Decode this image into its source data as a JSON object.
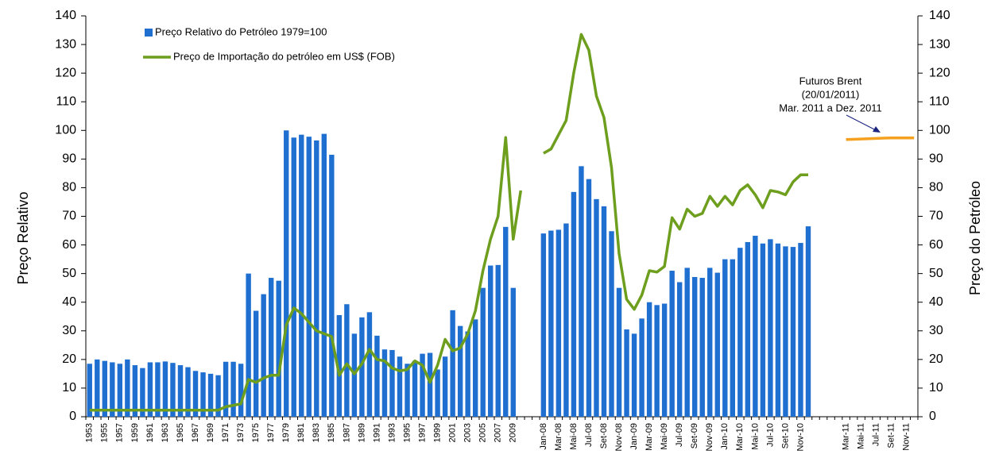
{
  "chart_data": {
    "type": "bar",
    "ylabel": "Preço Relativo",
    "y2label": "Preço do Petróleo",
    "annotation": [
      "Futuros Brent",
      "(20/01/2011)",
      "Mar. 2011  a Dez. 2011"
    ],
    "categories": [
      "1953",
      null,
      "1955",
      null,
      "1957",
      null,
      "1959",
      null,
      "1961",
      null,
      "1963",
      null,
      "1965",
      null,
      "1967",
      null,
      "1969",
      null,
      "1971",
      null,
      "1973",
      null,
      "1975",
      null,
      "1977",
      null,
      "1979",
      null,
      "1981",
      null,
      "1983",
      null,
      "1985",
      null,
      "1987",
      null,
      "1989",
      null,
      "1991",
      null,
      "1993",
      null,
      "1995",
      null,
      "1997",
      null,
      "1999",
      null,
      "2001",
      null,
      "2003",
      null,
      "2005",
      null,
      "2007",
      null,
      "2009",
      null,
      null,
      null,
      "Jan-08",
      null,
      "Mar-08",
      null,
      "Mai-08",
      null,
      "Jul-08",
      null,
      "Set-08",
      null,
      "Nov-08",
      null,
      "Jan-09",
      null,
      "Mar-09",
      null,
      "Mai-09",
      null,
      "Jul-09",
      null,
      "Set-09",
      null,
      "Nov-09",
      null,
      "Jan-10",
      null,
      "Mar-10",
      null,
      "Mai-10",
      null,
      "Jul-10",
      null,
      "Set-10",
      null,
      "Nov-10",
      null,
      null,
      null,
      null,
      null,
      "Mar-11",
      null,
      "Mai-11",
      null,
      "Jul-11",
      null,
      "Set-11",
      null,
      "Nov-11",
      null
    ],
    "series": [
      {
        "name": "Preço Relativo do Petróleo 1979=100",
        "type": "bar",
        "color": "#1f6fd1",
        "values": [
          18.5,
          20,
          19.5,
          19,
          18.5,
          20,
          18,
          17,
          19,
          19,
          19.3,
          18.8,
          18,
          17.3,
          16,
          15.5,
          15,
          14.5,
          19.2,
          19.2,
          18.5,
          50,
          37,
          42.8,
          48.5,
          47.5,
          100,
          97.5,
          98.5,
          97.8,
          96.5,
          98.8,
          91.5,
          35.5,
          39.3,
          29,
          34.7,
          36.5,
          28.3,
          23.5,
          23.3,
          21,
          18.5,
          19.5,
          22,
          22.3,
          16.5,
          21,
          37.2,
          31.7,
          29.8,
          34,
          45,
          52.8,
          53,
          66.3,
          45,
          null,
          null,
          null,
          64,
          65,
          65.3,
          67.5,
          78.5,
          87.5,
          83,
          76,
          73.5,
          64.8,
          45,
          30.5,
          29,
          34.3,
          40,
          39,
          39.5,
          51,
          47,
          52,
          48.8,
          48.5,
          52,
          50.3,
          55,
          55,
          59,
          61,
          63.2,
          60.5,
          62,
          60.5,
          59.5,
          59.3,
          60.7,
          66.5,
          null,
          null,
          null,
          null,
          null,
          null,
          null,
          null,
          null,
          null,
          null,
          null,
          null,
          null
        ]
      },
      {
        "name": "Preço de Importação do petróleo em US$ (FOB)",
        "type": "line",
        "axis": "y2",
        "color": "#6e9e1e",
        "values": [
          2.3,
          2.3,
          2.3,
          2.3,
          2.3,
          2.3,
          2.3,
          2.3,
          2.3,
          2.3,
          2.3,
          2.3,
          2.3,
          2.3,
          2.3,
          2.3,
          2.3,
          2.3,
          3.5,
          4,
          4.5,
          13,
          12,
          13.5,
          14.5,
          14.5,
          32,
          38,
          36,
          33,
          30,
          29,
          28,
          14.5,
          18.5,
          15,
          18.5,
          23.5,
          20,
          19.5,
          17,
          16,
          16.5,
          19.5,
          18,
          12,
          18,
          27,
          23,
          24,
          29,
          37,
          51,
          62,
          70,
          97.5,
          62,
          79,
          null,
          null,
          92,
          93.5,
          98.5,
          103.5,
          120,
          133.5,
          128,
          112,
          104.5,
          87,
          57,
          41,
          37.5,
          42.5,
          51,
          50.5,
          52.5,
          69.5,
          65.5,
          72.5,
          70,
          71,
          77,
          73.5,
          77,
          74,
          79,
          81,
          77.5,
          73,
          79,
          78.5,
          77.5,
          82,
          84.5,
          84.5,
          null,
          null,
          null,
          null,
          null,
          null,
          null,
          null,
          null,
          null,
          null,
          null,
          null,
          null
        ]
      },
      {
        "type": "line",
        "axis": "y2",
        "color": "#f5a11f",
        "values": [
          null,
          null,
          null,
          null,
          null,
          null,
          null,
          null,
          null,
          null,
          null,
          null,
          null,
          null,
          null,
          null,
          null,
          null,
          null,
          null,
          null,
          null,
          null,
          null,
          null,
          null,
          null,
          null,
          null,
          null,
          null,
          null,
          null,
          null,
          null,
          null,
          null,
          null,
          null,
          null,
          null,
          null,
          null,
          null,
          null,
          null,
          null,
          null,
          null,
          null,
          null,
          null,
          null,
          null,
          null,
          null,
          null,
          null,
          null,
          null,
          null,
          null,
          null,
          null,
          null,
          null,
          null,
          null,
          null,
          null,
          null,
          null,
          null,
          null,
          null,
          null,
          null,
          null,
          null,
          null,
          null,
          null,
          null,
          null,
          null,
          null,
          null,
          null,
          null,
          null,
          null,
          null,
          null,
          null,
          null,
          null,
          null,
          null,
          null,
          null,
          96.8,
          96.9,
          97,
          97.1,
          97.2,
          97.3,
          97.4,
          97.4,
          97.4,
          97.4
        ]
      }
    ],
    "ylim": [
      0,
      140
    ],
    "yticks": [
      0,
      10,
      20,
      30,
      40,
      50,
      60,
      70,
      80,
      90,
      100,
      110,
      120,
      130,
      140
    ],
    "y2lim": [
      0,
      140
    ],
    "y2ticks": [
      0,
      10,
      20,
      30,
      40,
      50,
      60,
      70,
      80,
      90,
      100,
      110,
      120,
      130,
      140
    ]
  }
}
